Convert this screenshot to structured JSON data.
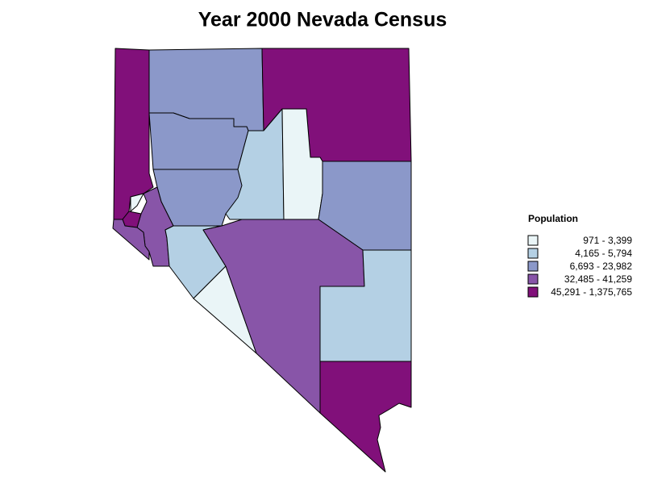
{
  "title": "Year 2000 Nevada Census",
  "legend": {
    "title": "Population",
    "items": [
      {
        "label": "971 - 3,399",
        "color": "#eaf5f7"
      },
      {
        "label": "4,165 - 5,794",
        "color": "#b4d0e4"
      },
      {
        "label": "6,693 - 23,982",
        "color": "#8b98c9"
      },
      {
        "label": "32,485 - 41,259",
        "color": "#8855a8"
      },
      {
        "label": "45,291 - 1,375,765",
        "color": "#81107a"
      }
    ]
  }
}
